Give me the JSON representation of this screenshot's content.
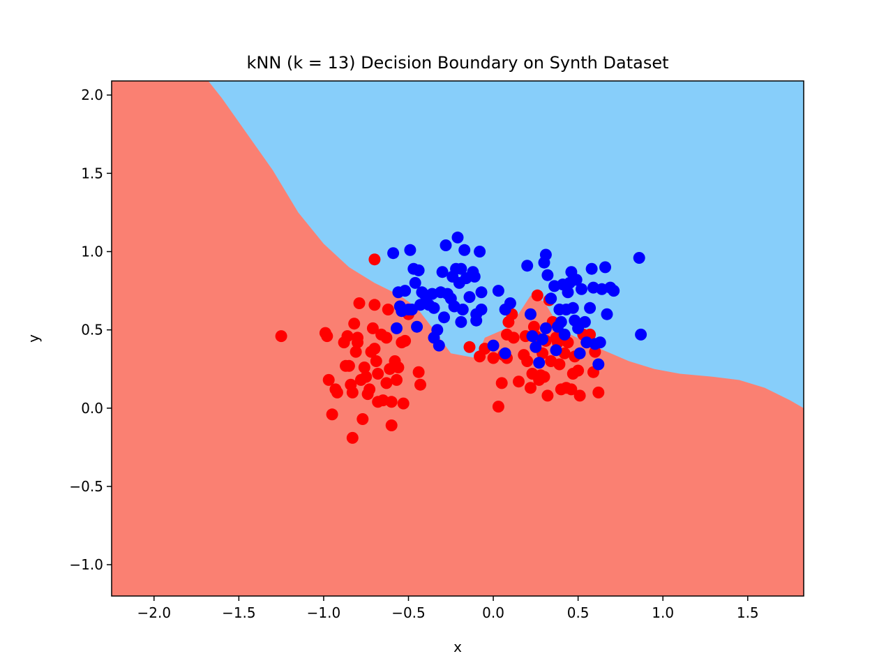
{
  "chart_data": {
    "type": "scatter",
    "title": "kNN (k = 13) Decision Boundary on Synth Dataset",
    "xlabel": "x",
    "ylabel": "y",
    "xlim": [
      -2.25,
      1.83
    ],
    "ylim": [
      -1.2,
      2.09
    ],
    "xticks": [
      -2.0,
      -1.5,
      -1.0,
      -0.5,
      0.0,
      0.5,
      1.0,
      1.5
    ],
    "xtick_labels": [
      "−2.0",
      "−1.5",
      "−1.0",
      "−0.5",
      "0.0",
      "0.5",
      "1.0",
      "1.5"
    ],
    "yticks": [
      -1.0,
      -0.5,
      0.0,
      0.5,
      1.0,
      1.5,
      2.0
    ],
    "ytick_labels": [
      "−1.0",
      "−0.5",
      "0.0",
      "0.5",
      "1.0",
      "1.5",
      "2.0"
    ],
    "grid": false,
    "legend": "none",
    "regions": {
      "class_0_color": "#fa8072",
      "class_1_color": "#87cefa",
      "boundary": [
        [
          -1.68,
          2.09
        ],
        [
          -1.6,
          1.98
        ],
        [
          -1.45,
          1.75
        ],
        [
          -1.3,
          1.52
        ],
        [
          -1.15,
          1.25
        ],
        [
          -1.0,
          1.05
        ],
        [
          -0.85,
          0.9
        ],
        [
          -0.7,
          0.8
        ],
        [
          -0.55,
          0.72
        ],
        [
          -0.45,
          0.64
        ],
        [
          -0.35,
          0.5
        ],
        [
          -0.25,
          0.35
        ],
        [
          -0.1,
          0.32
        ],
        [
          -0.05,
          0.45
        ],
        [
          0.1,
          0.52
        ],
        [
          0.22,
          0.72
        ],
        [
          0.3,
          0.68
        ],
        [
          0.4,
          0.5
        ],
        [
          0.55,
          0.42
        ],
        [
          0.65,
          0.37
        ],
        [
          0.8,
          0.3
        ],
        [
          0.95,
          0.25
        ],
        [
          1.1,
          0.22
        ],
        [
          1.3,
          0.2
        ],
        [
          1.45,
          0.18
        ],
        [
          1.6,
          0.13
        ],
        [
          1.75,
          0.05
        ],
        [
          1.83,
          0.0
        ]
      ]
    },
    "series": [
      {
        "color": "#ff0000",
        "points": [
          [
            -1.25,
            0.46
          ],
          [
            -0.7,
            0.95
          ],
          [
            -0.99,
            0.48
          ],
          [
            -0.98,
            0.46
          ],
          [
            -0.97,
            0.18
          ],
          [
            -0.95,
            -0.04
          ],
          [
            -0.93,
            0.12
          ],
          [
            -0.92,
            0.1
          ],
          [
            -0.88,
            0.42
          ],
          [
            -0.87,
            0.27
          ],
          [
            -0.86,
            0.46
          ],
          [
            -0.85,
            0.27
          ],
          [
            -0.84,
            0.15
          ],
          [
            -0.83,
            0.1
          ],
          [
            -0.83,
            -0.19
          ],
          [
            -0.82,
            0.54
          ],
          [
            -0.81,
            0.36
          ],
          [
            -0.8,
            0.45
          ],
          [
            -0.8,
            0.42
          ],
          [
            -0.79,
            0.67
          ],
          [
            -0.78,
            0.18
          ],
          [
            -0.77,
            -0.07
          ],
          [
            -0.76,
            0.26
          ],
          [
            -0.75,
            0.2
          ],
          [
            -0.74,
            0.09
          ],
          [
            -0.73,
            0.12
          ],
          [
            -0.72,
            0.36
          ],
          [
            -0.71,
            0.51
          ],
          [
            -0.7,
            0.66
          ],
          [
            -0.7,
            0.38
          ],
          [
            -0.69,
            0.3
          ],
          [
            -0.68,
            0.22
          ],
          [
            -0.68,
            0.04
          ],
          [
            -0.66,
            0.47
          ],
          [
            -0.65,
            0.05
          ],
          [
            -0.63,
            0.16
          ],
          [
            -0.63,
            0.45
          ],
          [
            -0.62,
            0.63
          ],
          [
            -0.61,
            0.25
          ],
          [
            -0.6,
            0.04
          ],
          [
            -0.6,
            -0.11
          ],
          [
            -0.58,
            0.3
          ],
          [
            -0.57,
            0.18
          ],
          [
            -0.56,
            0.26
          ],
          [
            -0.54,
            0.42
          ],
          [
            -0.53,
            0.03
          ],
          [
            -0.52,
            0.43
          ],
          [
            -0.5,
            0.6
          ],
          [
            -0.44,
            0.23
          ],
          [
            -0.43,
            0.15
          ],
          [
            -0.14,
            0.39
          ],
          [
            -0.08,
            0.33
          ],
          [
            -0.05,
            0.38
          ],
          [
            0.0,
            0.32
          ],
          [
            0.03,
            0.01
          ],
          [
            0.05,
            0.16
          ],
          [
            0.06,
            0.34
          ],
          [
            0.08,
            0.32
          ],
          [
            0.08,
            0.47
          ],
          [
            0.09,
            0.55
          ],
          [
            0.11,
            0.6
          ],
          [
            0.12,
            0.45
          ],
          [
            0.15,
            0.17
          ],
          [
            0.18,
            0.34
          ],
          [
            0.19,
            0.46
          ],
          [
            0.2,
            0.3
          ],
          [
            0.22,
            0.13
          ],
          [
            0.23,
            0.22
          ],
          [
            0.24,
            0.52
          ],
          [
            0.25,
            0.46
          ],
          [
            0.26,
            0.72
          ],
          [
            0.27,
            0.18
          ],
          [
            0.28,
            0.21
          ],
          [
            0.29,
            0.35
          ],
          [
            0.3,
            0.2
          ],
          [
            0.31,
            0.43
          ],
          [
            0.32,
            0.08
          ],
          [
            0.33,
            0.69
          ],
          [
            0.34,
            0.3
          ],
          [
            0.35,
            0.55
          ],
          [
            0.37,
            0.45
          ],
          [
            0.38,
            0.42
          ],
          [
            0.39,
            0.28
          ],
          [
            0.4,
            0.12
          ],
          [
            0.42,
            0.35
          ],
          [
            0.43,
            0.13
          ],
          [
            0.44,
            0.42
          ],
          [
            0.46,
            0.12
          ],
          [
            0.47,
            0.22
          ],
          [
            0.48,
            0.33
          ],
          [
            0.5,
            0.24
          ],
          [
            0.51,
            0.08
          ],
          [
            0.53,
            0.47
          ],
          [
            0.55,
            0.42
          ],
          [
            0.57,
            0.47
          ],
          [
            0.59,
            0.23
          ],
          [
            0.6,
            0.36
          ],
          [
            0.62,
            0.1
          ]
        ]
      },
      {
        "color": "#0000ff",
        "points": [
          [
            -0.59,
            0.99
          ],
          [
            -0.49,
            1.01
          ],
          [
            -0.47,
            0.89
          ],
          [
            -0.46,
            0.8
          ],
          [
            -0.44,
            0.88
          ],
          [
            -0.42,
            0.74
          ],
          [
            -0.4,
            0.72
          ],
          [
            -0.38,
            0.66
          ],
          [
            -0.36,
            0.73
          ],
          [
            -0.35,
            0.64
          ],
          [
            -0.33,
            0.5
          ],
          [
            -0.31,
            0.74
          ],
          [
            -0.3,
            0.87
          ],
          [
            -0.29,
            0.58
          ],
          [
            -0.28,
            1.04
          ],
          [
            -0.27,
            0.73
          ],
          [
            -0.25,
            0.7
          ],
          [
            -0.24,
            0.84
          ],
          [
            -0.23,
            0.65
          ],
          [
            -0.22,
            0.89
          ],
          [
            -0.21,
            1.09
          ],
          [
            -0.2,
            0.8
          ],
          [
            -0.19,
            0.89
          ],
          [
            -0.19,
            0.55
          ],
          [
            -0.18,
            0.63
          ],
          [
            -0.17,
            1.01
          ],
          [
            -0.16,
            0.83
          ],
          [
            -0.14,
            0.71
          ],
          [
            -0.12,
            0.87
          ],
          [
            -0.11,
            0.84
          ],
          [
            -0.1,
            0.6
          ],
          [
            -0.08,
            1.0
          ],
          [
            -0.07,
            0.74
          ],
          [
            -0.07,
            0.63
          ],
          [
            -0.56,
            0.74
          ],
          [
            -0.55,
            0.65
          ],
          [
            -0.54,
            0.62
          ],
          [
            -0.52,
            0.75
          ],
          [
            -0.5,
            0.63
          ],
          [
            -0.48,
            0.63
          ],
          [
            -0.45,
            0.52
          ],
          [
            -0.43,
            0.66
          ],
          [
            -0.57,
            0.51
          ],
          [
            -0.35,
            0.45
          ],
          [
            -0.32,
            0.4
          ],
          [
            -0.1,
            0.56
          ],
          [
            0.0,
            0.4
          ],
          [
            0.03,
            0.75
          ],
          [
            0.07,
            0.63
          ],
          [
            0.07,
            0.35
          ],
          [
            0.1,
            0.67
          ],
          [
            0.2,
            0.91
          ],
          [
            0.22,
            0.6
          ],
          [
            0.23,
            0.46
          ],
          [
            0.25,
            0.39
          ],
          [
            0.27,
            0.29
          ],
          [
            0.29,
            0.44
          ],
          [
            0.3,
            0.93
          ],
          [
            0.31,
            0.98
          ],
          [
            0.31,
            0.51
          ],
          [
            0.32,
            0.85
          ],
          [
            0.34,
            0.7
          ],
          [
            0.36,
            0.78
          ],
          [
            0.37,
            0.37
          ],
          [
            0.38,
            0.52
          ],
          [
            0.39,
            0.63
          ],
          [
            0.4,
            0.55
          ],
          [
            0.41,
            0.79
          ],
          [
            0.42,
            0.47
          ],
          [
            0.43,
            0.63
          ],
          [
            0.44,
            0.74
          ],
          [
            0.45,
            0.8
          ],
          [
            0.46,
            0.87
          ],
          [
            0.47,
            0.64
          ],
          [
            0.48,
            0.56
          ],
          [
            0.49,
            0.82
          ],
          [
            0.5,
            0.51
          ],
          [
            0.51,
            0.35
          ],
          [
            0.52,
            0.76
          ],
          [
            0.54,
            0.55
          ],
          [
            0.55,
            0.42
          ],
          [
            0.57,
            0.64
          ],
          [
            0.58,
            0.89
          ],
          [
            0.59,
            0.77
          ],
          [
            0.6,
            0.41
          ],
          [
            0.62,
            0.28
          ],
          [
            0.63,
            0.42
          ],
          [
            0.64,
            0.76
          ],
          [
            0.66,
            0.9
          ],
          [
            0.67,
            0.6
          ],
          [
            0.69,
            0.77
          ],
          [
            0.71,
            0.75
          ],
          [
            0.86,
            0.96
          ],
          [
            0.87,
            0.47
          ]
        ]
      }
    ]
  }
}
